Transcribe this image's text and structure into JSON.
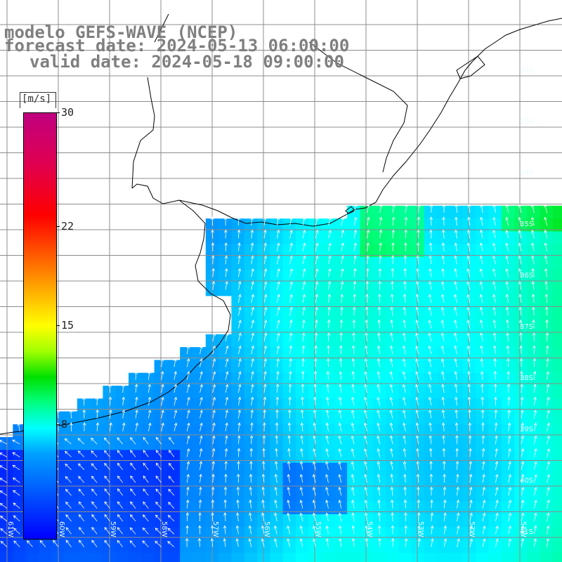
{
  "title": {
    "line1": "modelo GEFS-WAVE (NCEP)",
    "line2": "forecast date: 2024-05-13 06:00:00",
    "line3": "valid date: 2024-05-18 09:00:00"
  },
  "colorbar": {
    "unit": "[m/s]",
    "ticks": [
      {
        "label": "30",
        "value": 30
      },
      {
        "label": "22",
        "value": 22
      },
      {
        "label": "15",
        "value": 15
      },
      {
        "label": "8",
        "value": 8
      }
    ],
    "min": 0,
    "max": 30
  },
  "lat_labels": [
    "32S",
    "33S",
    "34S",
    "35S",
    "36S",
    "37S",
    "38S",
    "39S",
    "40S",
    "41S"
  ],
  "lon_labels": [
    "61W",
    "60W",
    "59W",
    "58W",
    "57W",
    "56W",
    "55W",
    "54W",
    "53W",
    "52W",
    "51W"
  ],
  "colors": {
    "land": "#ffffff",
    "grid": "#8c8c8c",
    "coast": "#000000",
    "arrows": "#ffffff",
    "title": "#7f7f7f"
  }
}
